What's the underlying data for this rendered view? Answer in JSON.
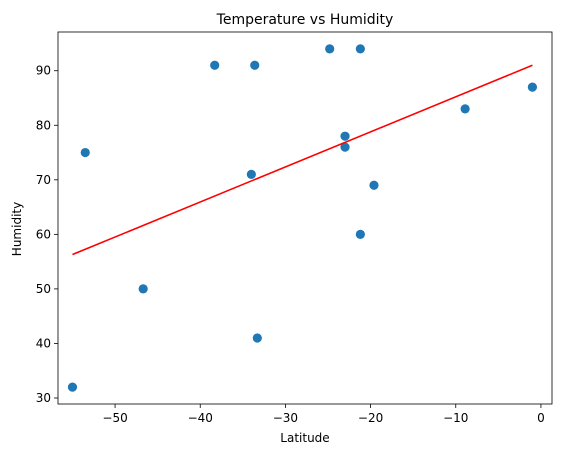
{
  "chart_data": {
    "type": "scatter",
    "title": "Temperature vs Humidity",
    "xlabel": "Latitude",
    "ylabel": "Humidity",
    "xlim": [
      -56.7,
      1.3
    ],
    "ylim": [
      28.9,
      97.1
    ],
    "xticks": [
      -50,
      -40,
      -30,
      -20,
      -10,
      0
    ],
    "xtick_labels": [
      "−50",
      "−40",
      "−30",
      "−20",
      "−10",
      "0"
    ],
    "yticks": [
      30,
      40,
      50,
      60,
      70,
      80,
      90
    ],
    "ytick_labels": [
      "30",
      "40",
      "50",
      "60",
      "70",
      "80",
      "90"
    ],
    "grid": false,
    "points": [
      {
        "x": -55.0,
        "y": 32
      },
      {
        "x": -53.5,
        "y": 75
      },
      {
        "x": -46.7,
        "y": 50
      },
      {
        "x": -38.3,
        "y": 91
      },
      {
        "x": -34.0,
        "y": 71
      },
      {
        "x": -33.6,
        "y": 91
      },
      {
        "x": -33.3,
        "y": 41
      },
      {
        "x": -24.8,
        "y": 94
      },
      {
        "x": -23.0,
        "y": 78
      },
      {
        "x": -23.0,
        "y": 76
      },
      {
        "x": -21.2,
        "y": 94
      },
      {
        "x": -21.2,
        "y": 60
      },
      {
        "x": -19.6,
        "y": 69
      },
      {
        "x": -8.9,
        "y": 83
      },
      {
        "x": -1.0,
        "y": 87
      }
    ],
    "regression_line": {
      "x": [
        -55.0,
        -1.0
      ],
      "y": [
        56.3,
        91.0
      ]
    },
    "colors": {
      "points": "#1f77b4",
      "regression": "#ff0000",
      "axes": "#000000"
    }
  }
}
